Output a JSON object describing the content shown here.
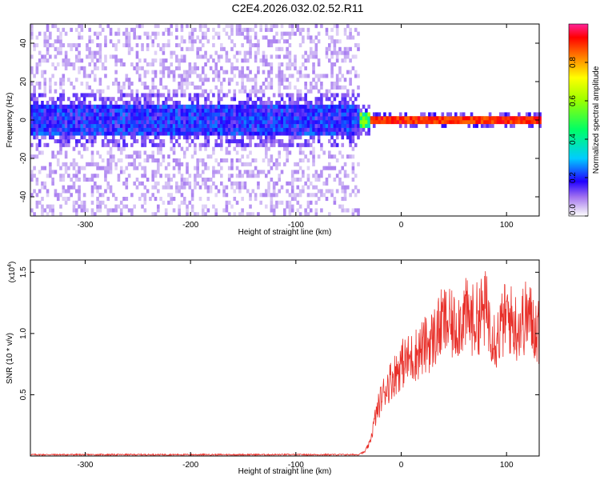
{
  "title": "C2E4.2026.032.02.52.R11",
  "colors": {
    "snr_line": "#e8302a"
  },
  "chart_data": [
    {
      "type": "heatmap",
      "xlabel": "Height of straight line (km)",
      "ylabel": "Frequency (Hz)",
      "xlim": [
        -352,
        131
      ],
      "ylim": [
        -50,
        50
      ],
      "xticks": [
        -300,
        -200,
        -100,
        0,
        100
      ],
      "yticks": [
        -40,
        -20,
        0,
        20,
        40
      ],
      "colorbar": {
        "label": "Normalized spectral amplitude",
        "range": [
          0,
          1
        ],
        "ticks": [
          "0.0",
          "0.2",
          "0.4",
          "0.6",
          "0.8"
        ],
        "tick_values": [
          0.0,
          0.2,
          0.4,
          0.6,
          0.8
        ],
        "colormap": "rainbow"
      },
      "regions": [
        {
          "x_range": [
            -352,
            -42
          ],
          "description_level": "noise",
          "core_freq_halfwidth": 8,
          "typical_amplitude": 0.1
        },
        {
          "x_range": [
            -42,
            -30
          ],
          "description_level": "transition",
          "core_freq_halfwidth": 4,
          "typical_amplitude": 0.5
        },
        {
          "x_range": [
            -30,
            131
          ],
          "description_level": "signal",
          "core_freq_halfwidth": 2,
          "typical_amplitude": 0.9
        }
      ]
    },
    {
      "type": "line",
      "xlabel": "Height of straight line (km)",
      "ylabel": "SNR (10 * v/v)",
      "scale_label": "(x10",
      "scale_exp": "4",
      "xlim": [
        -352,
        131
      ],
      "ylim": [
        0,
        1.6
      ],
      "xticks": [
        -300,
        -200,
        -100,
        0,
        100
      ],
      "yticks": [
        0.5,
        1.0,
        1.5
      ],
      "ytick_labels": [
        "0.5",
        "1.0",
        "1.5"
      ],
      "series": [
        {
          "x": [
            -352,
            -300,
            -200,
            -100,
            -45,
            -35,
            -30,
            -25,
            -20,
            -15,
            -10,
            -5,
            0,
            10,
            20,
            30,
            40,
            50,
            60,
            70,
            80,
            90,
            100,
            110,
            120,
            131
          ],
          "values": [
            0.01,
            0.01,
            0.01,
            0.01,
            0.01,
            0.03,
            0.1,
            0.3,
            0.45,
            0.55,
            0.62,
            0.68,
            0.75,
            0.8,
            0.88,
            0.95,
            1.1,
            1.05,
            1.15,
            1.1,
            1.2,
            0.95,
            1.15,
            1.05,
            1.15,
            1.0
          ]
        }
      ]
    }
  ]
}
